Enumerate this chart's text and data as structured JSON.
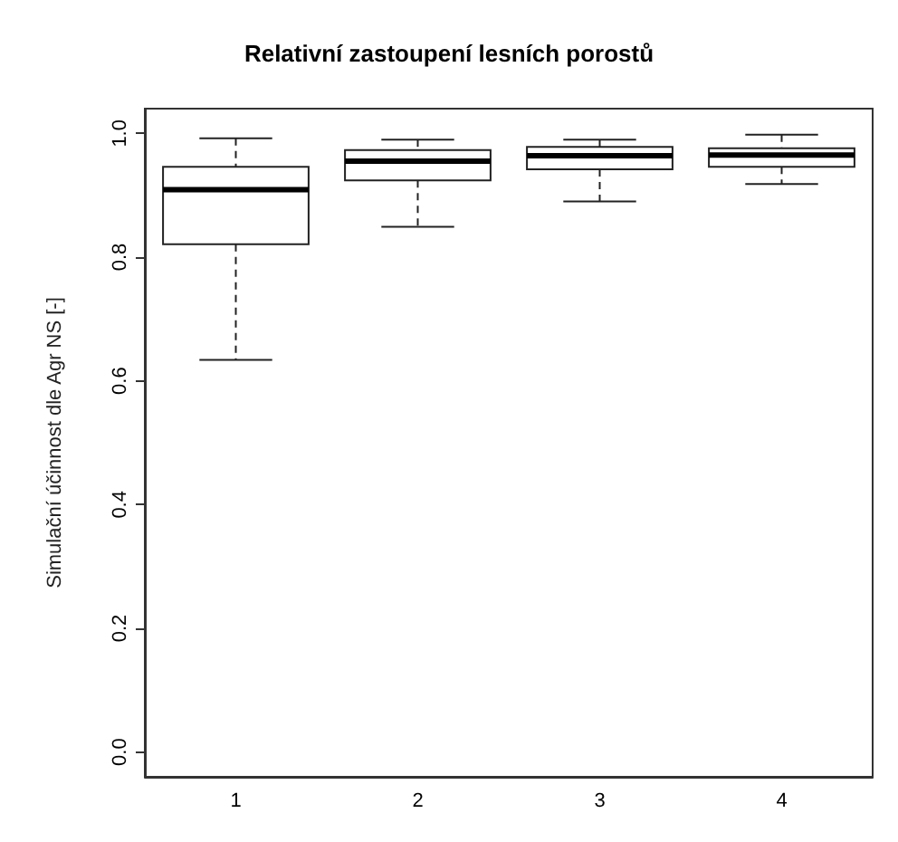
{
  "chart_data": {
    "type": "box",
    "title": "Relativní zastoupení lesních porostů",
    "ylabel": "Simulační účinnost dle Agr NS [-]",
    "categories": [
      "1",
      "2",
      "3",
      "4"
    ],
    "boxes": [
      {
        "low": 0.634,
        "q1": 0.821,
        "median": 0.909,
        "q3": 0.946,
        "high": 0.992
      },
      {
        "low": 0.849,
        "q1": 0.924,
        "median": 0.955,
        "q3": 0.973,
        "high": 0.99
      },
      {
        "low": 0.89,
        "q1": 0.942,
        "median": 0.964,
        "q3": 0.978,
        "high": 0.99
      },
      {
        "low": 0.918,
        "q1": 0.946,
        "median": 0.965,
        "q3": 0.976,
        "high": 0.998
      }
    ],
    "ylim": [
      -0.04,
      1.04
    ],
    "yticks": [
      {
        "value": 0,
        "label": "0.0"
      },
      {
        "value": 0.2,
        "label": "0.2"
      },
      {
        "value": 0.4,
        "label": "0.4"
      },
      {
        "value": 0.6,
        "label": "0.6"
      },
      {
        "value": 0.8,
        "label": "0.8"
      },
      {
        "value": 1,
        "label": "1.0"
      }
    ],
    "grid": false,
    "line_style": "dashed"
  }
}
